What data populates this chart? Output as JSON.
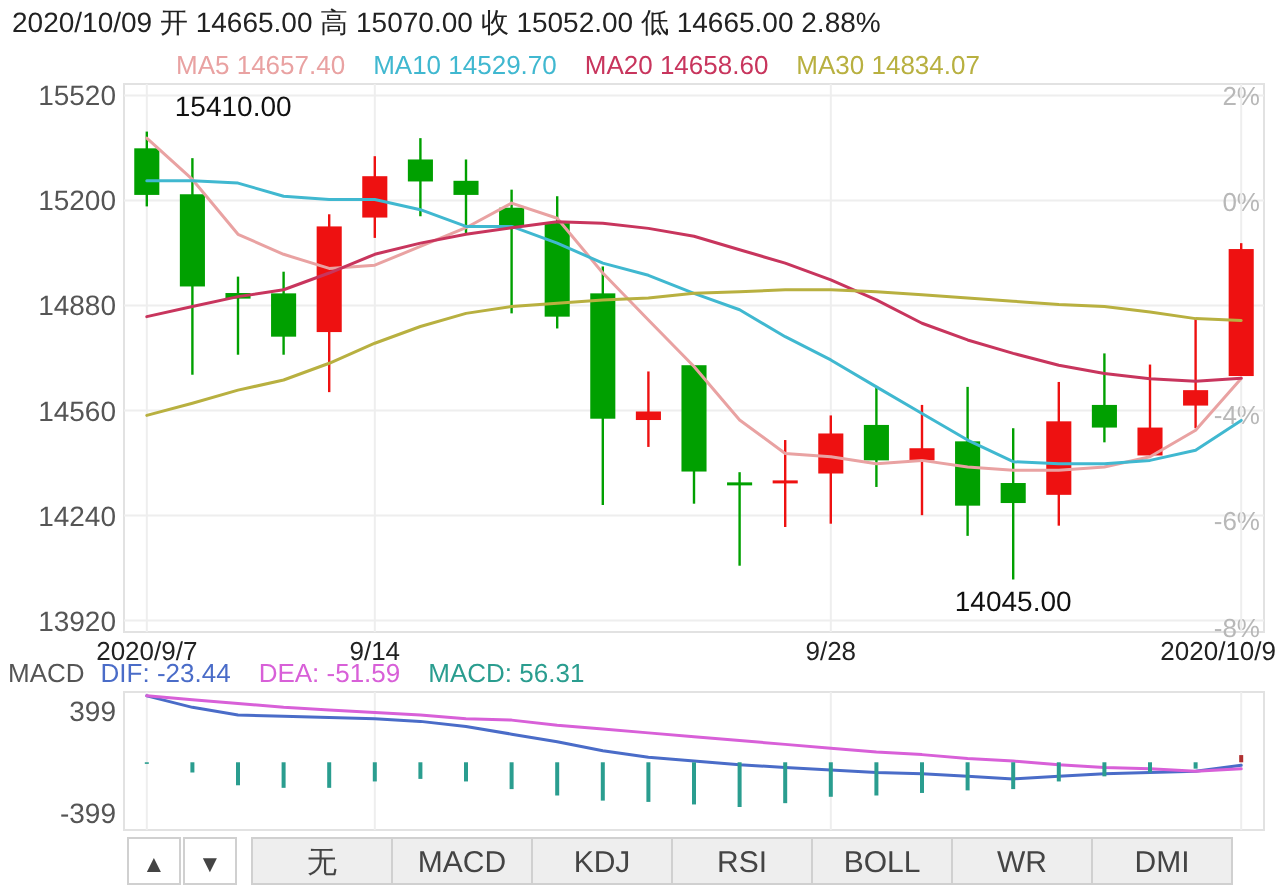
{
  "chart_data": [
    {
      "type": "candlestick",
      "title": "2020/10/09 开 14665.00 高 15070.00 收 15052.00 低 14665.00 2.88%",
      "categories": [
        "2020/9/7",
        null,
        null,
        null,
        null,
        "9/14",
        null,
        null,
        null,
        null,
        null,
        null,
        null,
        null,
        null,
        "9/28",
        null,
        null,
        null,
        null,
        null,
        null,
        null,
        null,
        "2020/10/9"
      ],
      "ohlc": [
        [
          15359,
          15410,
          15182,
          15217
        ],
        [
          15219,
          15329,
          14669,
          14938
        ],
        [
          14918,
          14968,
          14730,
          14901
        ],
        [
          14917,
          14983,
          14730,
          14785
        ],
        [
          14799,
          15158,
          14616,
          15121
        ],
        [
          15148,
          15335,
          15086,
          15274
        ],
        [
          15325,
          15390,
          15152,
          15258
        ],
        [
          15260,
          15325,
          15101,
          15217
        ],
        [
          15178,
          15233,
          14856,
          15121
        ],
        [
          15131,
          15213,
          14810,
          14846
        ],
        [
          14917,
          14999,
          14272,
          14535
        ],
        [
          14531,
          14679,
          14449,
          14557
        ],
        [
          14698,
          14698,
          14276,
          14374
        ],
        [
          14341,
          14372,
          14087,
          14333
        ],
        [
          14339,
          14470,
          14205,
          14347
        ],
        [
          14368,
          14545,
          14215,
          14490
        ],
        [
          14516,
          14632,
          14327,
          14408
        ],
        [
          14408,
          14577,
          14241,
          14445
        ],
        [
          14466,
          14632,
          14178,
          14270
        ],
        [
          14339,
          14506,
          14045,
          14278
        ],
        [
          14303,
          14647,
          14209,
          14527
        ],
        [
          14577,
          14734,
          14463,
          14508
        ],
        [
          14423,
          14700,
          14423,
          14508
        ],
        [
          14575,
          14840,
          14506,
          14622
        ],
        [
          14665,
          15070,
          14665,
          15052
        ]
      ],
      "colors": [
        "#00a000",
        "#00a000",
        "#00a000",
        "#00a000",
        "#ee1111",
        "#ee1111",
        "#00a000",
        "#00a000",
        "#00a000",
        "#00a000",
        "#00a000",
        "#ee1111",
        "#00a000",
        "#00a000",
        "#ee1111",
        "#ee1111",
        "#00a000",
        "#ee1111",
        "#00a000",
        "#00a000",
        "#ee1111",
        "#00a000",
        "#ee1111",
        "#ee1111",
        "#ee1111"
      ],
      "series": [
        {
          "name": "MA5 14657.40",
          "type": "line",
          "color": "#e9a2a2",
          "values": [
            15390,
            15264,
            15097,
            15036,
            14993,
            15003,
            15060,
            15117,
            15192,
            15146,
            14979,
            14836,
            14694,
            14531,
            14429,
            14419,
            14398,
            14408,
            14388,
            14378,
            14378,
            14388,
            14419,
            14500,
            14657.4
          ]
        },
        {
          "name": "MA10 14529.70",
          "type": "line",
          "color": "#40b8d0",
          "values": [
            15260,
            15260,
            15253,
            15213,
            15203,
            15203,
            15172,
            15121,
            15121,
            15070,
            15009,
            14972,
            14917,
            14867,
            14785,
            14714,
            14632,
            14551,
            14470,
            14404,
            14398,
            14398,
            14408,
            14439,
            14529.7
          ]
        },
        {
          "name": "MA20 14658.60",
          "type": "line",
          "color": "#c8355d",
          "values": [
            14846,
            14877,
            14907,
            14928,
            14979,
            15036,
            15070,
            15097,
            15117,
            15135,
            15131,
            15115,
            15091,
            15050,
            15009,
            14958,
            14897,
            14826,
            14775,
            14734,
            14698,
            14673,
            14657,
            14649,
            14658.6
          ]
        },
        {
          "name": "MA30 14834.07",
          "type": "line",
          "color": "#b8b040",
          "values": [
            14545,
            14582,
            14622,
            14653,
            14704,
            14765,
            14816,
            14856,
            14877,
            14887,
            14897,
            14903,
            14917,
            14922,
            14928,
            14928,
            14922,
            14913,
            14903,
            14893,
            14883,
            14877,
            14860,
            14840,
            14834.07
          ]
        }
      ],
      "ylim": [
        13885,
        15555
      ],
      "yticks": [
        15520,
        15200,
        14880,
        14560,
        14240,
        13920
      ],
      "y2lim": [
        -8.1,
        2.2
      ],
      "y2ticks": [
        {
          "value": 2,
          "label": "2%"
        },
        {
          "value": 0,
          "label": "0%"
        },
        {
          "value": -4,
          "label": "-4%"
        },
        {
          "value": -6,
          "label": "-6%"
        },
        {
          "value": -8,
          "label": "-8%"
        }
      ],
      "annotations": [
        {
          "text": "15410.00",
          "x": "2020/9/7",
          "y": 15410
        },
        {
          "text": "14045.00",
          "y": 14045
        }
      ],
      "grid": true,
      "legend": "top"
    },
    {
      "type": "line",
      "title": "MACD",
      "categories": [
        null,
        null,
        null,
        null,
        null,
        null,
        null,
        null,
        null,
        null,
        null,
        null,
        null,
        null,
        null,
        null,
        null,
        null,
        null,
        null,
        null,
        null,
        null,
        null,
        null
      ],
      "series": [
        {
          "name": "DIF: -23.44",
          "type": "line",
          "color": "#4a6cc8",
          "values": [
            520,
            430,
            370,
            360,
            350,
            340,
            320,
            280,
            220,
            160,
            90,
            40,
            10,
            -20,
            -40,
            -60,
            -80,
            -90,
            -110,
            -130,
            -110,
            -90,
            -80,
            -70,
            -23.44
          ]
        },
        {
          "name": "DEA: -51.59",
          "type": "line",
          "color": "#d860d8",
          "values": [
            520,
            490,
            460,
            430,
            410,
            390,
            370,
            340,
            330,
            290,
            260,
            230,
            200,
            170,
            140,
            110,
            80,
            60,
            30,
            10,
            -20,
            -40,
            -50,
            -70,
            -51.59
          ]
        },
        {
          "name": "MACD: 56.31",
          "type": "bar",
          "color": "#2a9d8f",
          "colors": [
            "#2a9d8f",
            "#2a9d8f",
            "#2a9d8f",
            "#2a9d8f",
            "#2a9d8f",
            "#2a9d8f",
            "#2a9d8f",
            "#2a9d8f",
            "#2a9d8f",
            "#2a9d8f",
            "#2a9d8f",
            "#2a9d8f",
            "#2a9d8f",
            "#2a9d8f",
            "#2a9d8f",
            "#2a9d8f",
            "#2a9d8f",
            "#2a9d8f",
            "#2a9d8f",
            "#2a9d8f",
            "#2a9d8f",
            "#2a9d8f",
            "#2a9d8f",
            "#2a9d8f",
            "#b03030"
          ],
          "values": [
            0,
            -80,
            -180,
            -200,
            -200,
            -150,
            -130,
            -150,
            -210,
            -260,
            -300,
            -310,
            -330,
            -350,
            -320,
            -270,
            -260,
            -240,
            -220,
            -210,
            -150,
            -110,
            -80,
            -50,
            56.31
          ]
        }
      ],
      "ylim": [
        -530,
        550
      ],
      "yticks": [
        399,
        -399
      ],
      "tick_labels": "y",
      "grid": "x",
      "legend": "top"
    },
    {
      "type": "other",
      "annotations": [
        "▲",
        "▼",
        "无",
        "MACD",
        "KDJ",
        "RSI",
        "BOLL",
        "WR",
        "DMI"
      ]
    }
  ]
}
